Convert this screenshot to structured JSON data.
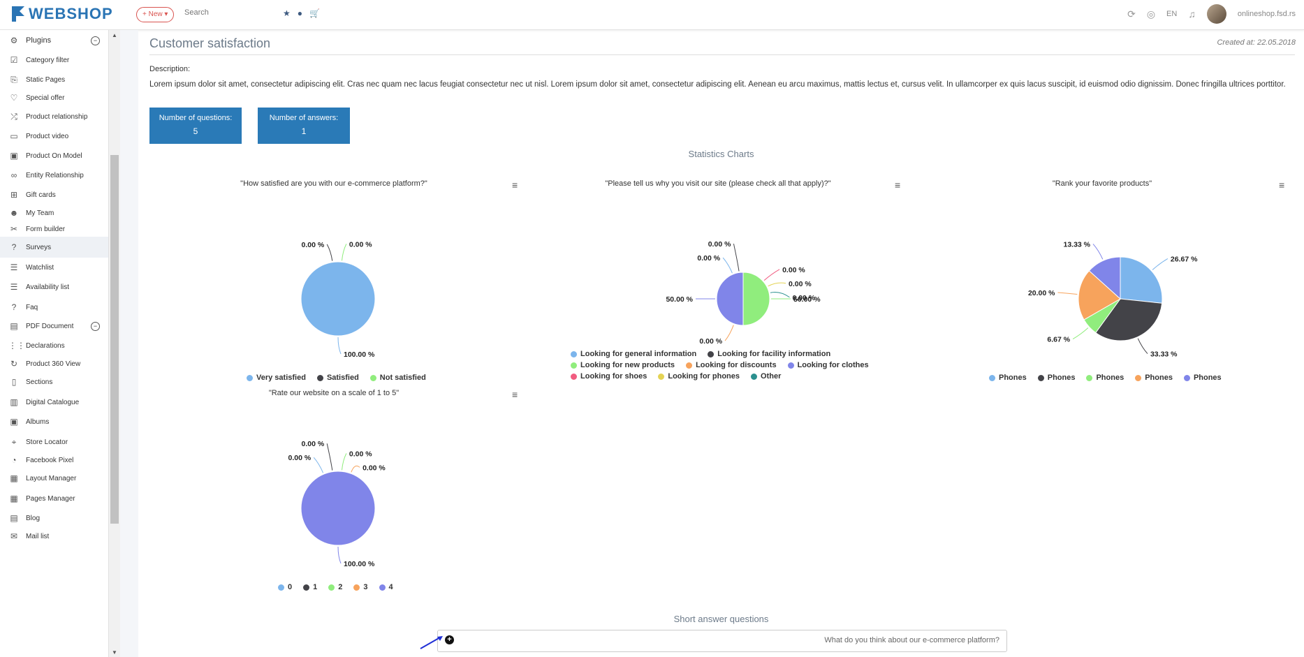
{
  "topbar": {
    "logo_text": "WEBSHOP",
    "new_label": "+ New ▾",
    "search_placeholder": "Search",
    "lang": "EN",
    "user": "onlineshop.fsd.rs"
  },
  "sidebar": {
    "items": [
      {
        "label": "Plugins",
        "icon": "plugin-icon"
      },
      {
        "label": "Category filter",
        "icon": "checkbox-icon"
      },
      {
        "label": "Static Pages",
        "icon": "bookmark-icon"
      },
      {
        "label": "Special offer",
        "icon": "heart-icon"
      },
      {
        "label": "Product relationship",
        "icon": "shuffle-icon"
      },
      {
        "label": "Product video",
        "icon": "video-icon"
      },
      {
        "label": "Product On Model",
        "icon": "image-icon"
      },
      {
        "label": "Entity Relationship",
        "icon": "link-icon"
      },
      {
        "label": "Gift cards",
        "icon": "gift-icon"
      },
      {
        "label": "My Team",
        "icon": "users-icon"
      },
      {
        "label": "Form builder",
        "icon": "tools-icon"
      },
      {
        "label": "Surveys",
        "icon": "question-icon"
      },
      {
        "label": "Watchlist",
        "icon": "list-icon"
      },
      {
        "label": "Availability list",
        "icon": "list-icon"
      },
      {
        "label": "Faq",
        "icon": "question-icon"
      },
      {
        "label": "PDF Document",
        "icon": "pdf-icon"
      },
      {
        "label": "Declarations",
        "icon": "grid-icon"
      },
      {
        "label": "Product 360 View",
        "icon": "rotate-icon"
      },
      {
        "label": "Sections",
        "icon": "mobile-icon"
      },
      {
        "label": "Digital Catalogue",
        "icon": "book-icon"
      },
      {
        "label": "Albums",
        "icon": "image-icon"
      },
      {
        "label": "Store Locator",
        "icon": "map-pin-icon"
      },
      {
        "label": "Facebook Pixel",
        "icon": "pie-icon"
      },
      {
        "label": "Layout Manager",
        "icon": "layout-icon"
      },
      {
        "label": "Pages Manager",
        "icon": "layout-icon"
      },
      {
        "label": "Blog",
        "icon": "blog-icon"
      },
      {
        "label": "Mail list",
        "icon": "mail-icon"
      }
    ]
  },
  "page": {
    "title": "Customer satisfaction",
    "created": "Created at: 22.05.2018",
    "description_label": "Description:",
    "description": "Lorem ipsum dolor sit amet, consectetur adipiscing elit. Cras nec quam nec lacus feugiat consectetur nec ut nisl. Lorem ipsum dolor sit amet, consectetur adipiscing elit. Aenean eu arcu maximus, mattis lectus et, cursus velit. In ullamcorper ex quis lacus suscipit, id euismod odio dignissim. Donec fringilla ultrices porttitor.",
    "stats": {
      "questions_label": "Number of questions:",
      "questions_value": "5",
      "answers_label": "Number of answers:",
      "answers_value": "1"
    },
    "charts_heading": "Statistics Charts",
    "short_heading": "Short answer questions",
    "short_question": "What do you think about our e-commerce platform?"
  },
  "colors": {
    "blue": "#7cb5ec",
    "dark": "#434348",
    "green": "#90ed7d",
    "orange": "#f7a35c",
    "purple": "#8085e9",
    "pink": "#f15c80",
    "yellow": "#e4d354",
    "teal": "#2b908f",
    "stat_box": "#2a7ab7"
  },
  "chart_data": [
    {
      "type": "pie",
      "title": "\"How satisfied are you with our e-commerce platform?\"",
      "labels": [
        "Very satisfied",
        "Satisfied",
        "Not satisfied"
      ],
      "values": [
        100.0,
        0.0,
        0.0
      ],
      "data_labels": [
        "100.00 %",
        "0.00 %",
        "0.00 %"
      ],
      "legend": "bottom"
    },
    {
      "type": "pie",
      "title": "\"Please tell us why you visit our site (please check all that apply)?\"",
      "labels": [
        "Looking for general information",
        "Looking for facility information",
        "Looking for new products",
        "Looking for discounts",
        "Looking for clothes",
        "Looking for shoes",
        "Looking for phones",
        "Other"
      ],
      "values": [
        0.0,
        0.0,
        50.0,
        0.0,
        50.0,
        0.0,
        0.0,
        0.0
      ],
      "data_labels": [
        "0.00 %",
        "0.00 %",
        "50.00 %",
        "0.00 %",
        "50.00 %",
        "0.00 %",
        "0.00 %",
        "0.00 %"
      ],
      "legend": "bottom"
    },
    {
      "type": "pie",
      "title": "\"Rank your favorite products\"",
      "labels": [
        "Phones",
        "Phones",
        "Phones",
        "Phones",
        "Phones"
      ],
      "values": [
        26.67,
        33.33,
        6.67,
        20.0,
        13.33
      ],
      "data_labels": [
        "26.67 %",
        "33.33 %",
        "6.67 %",
        "20.00 %",
        "13.33 %"
      ],
      "legend": "bottom"
    },
    {
      "type": "pie",
      "title": "\"Rate our website on a scale of 1 to 5\"",
      "labels": [
        "0",
        "1",
        "2",
        "3",
        "4"
      ],
      "values": [
        0.0,
        0.0,
        0.0,
        0.0,
        100.0
      ],
      "data_labels": [
        "0.00 %",
        "0.00 %",
        "0.00 %",
        "0.00 %",
        "100.00 %"
      ],
      "legend": "bottom"
    }
  ]
}
